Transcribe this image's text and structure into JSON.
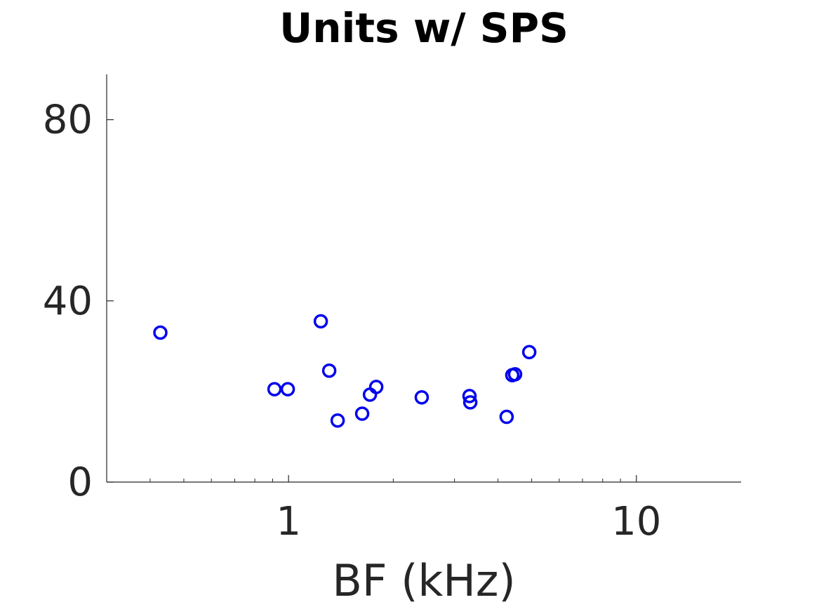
{
  "chart_data": {
    "type": "scatter",
    "title": "Units w/ SPS",
    "xlabel": "BF (kHz)",
    "x": [
      0.428,
      0.911,
      0.995,
      1.238,
      1.309,
      1.384,
      1.628,
      1.714,
      1.787,
      2.415,
      3.313,
      3.33,
      4.236,
      4.397,
      4.48,
      4.92
    ],
    "values": [
      33.0,
      20.5,
      20.5,
      35.5,
      24.6,
      13.6,
      15.1,
      19.3,
      21.0,
      18.7,
      19.0,
      17.6,
      14.4,
      23.6,
      23.8,
      28.7
    ],
    "color": "#0000ee",
    "xscale": "log",
    "xlim": [
      0.3,
      20
    ],
    "ylim": [
      0,
      90
    ],
    "xticks": [
      1,
      10
    ],
    "yticks": [
      0,
      40,
      80
    ]
  }
}
